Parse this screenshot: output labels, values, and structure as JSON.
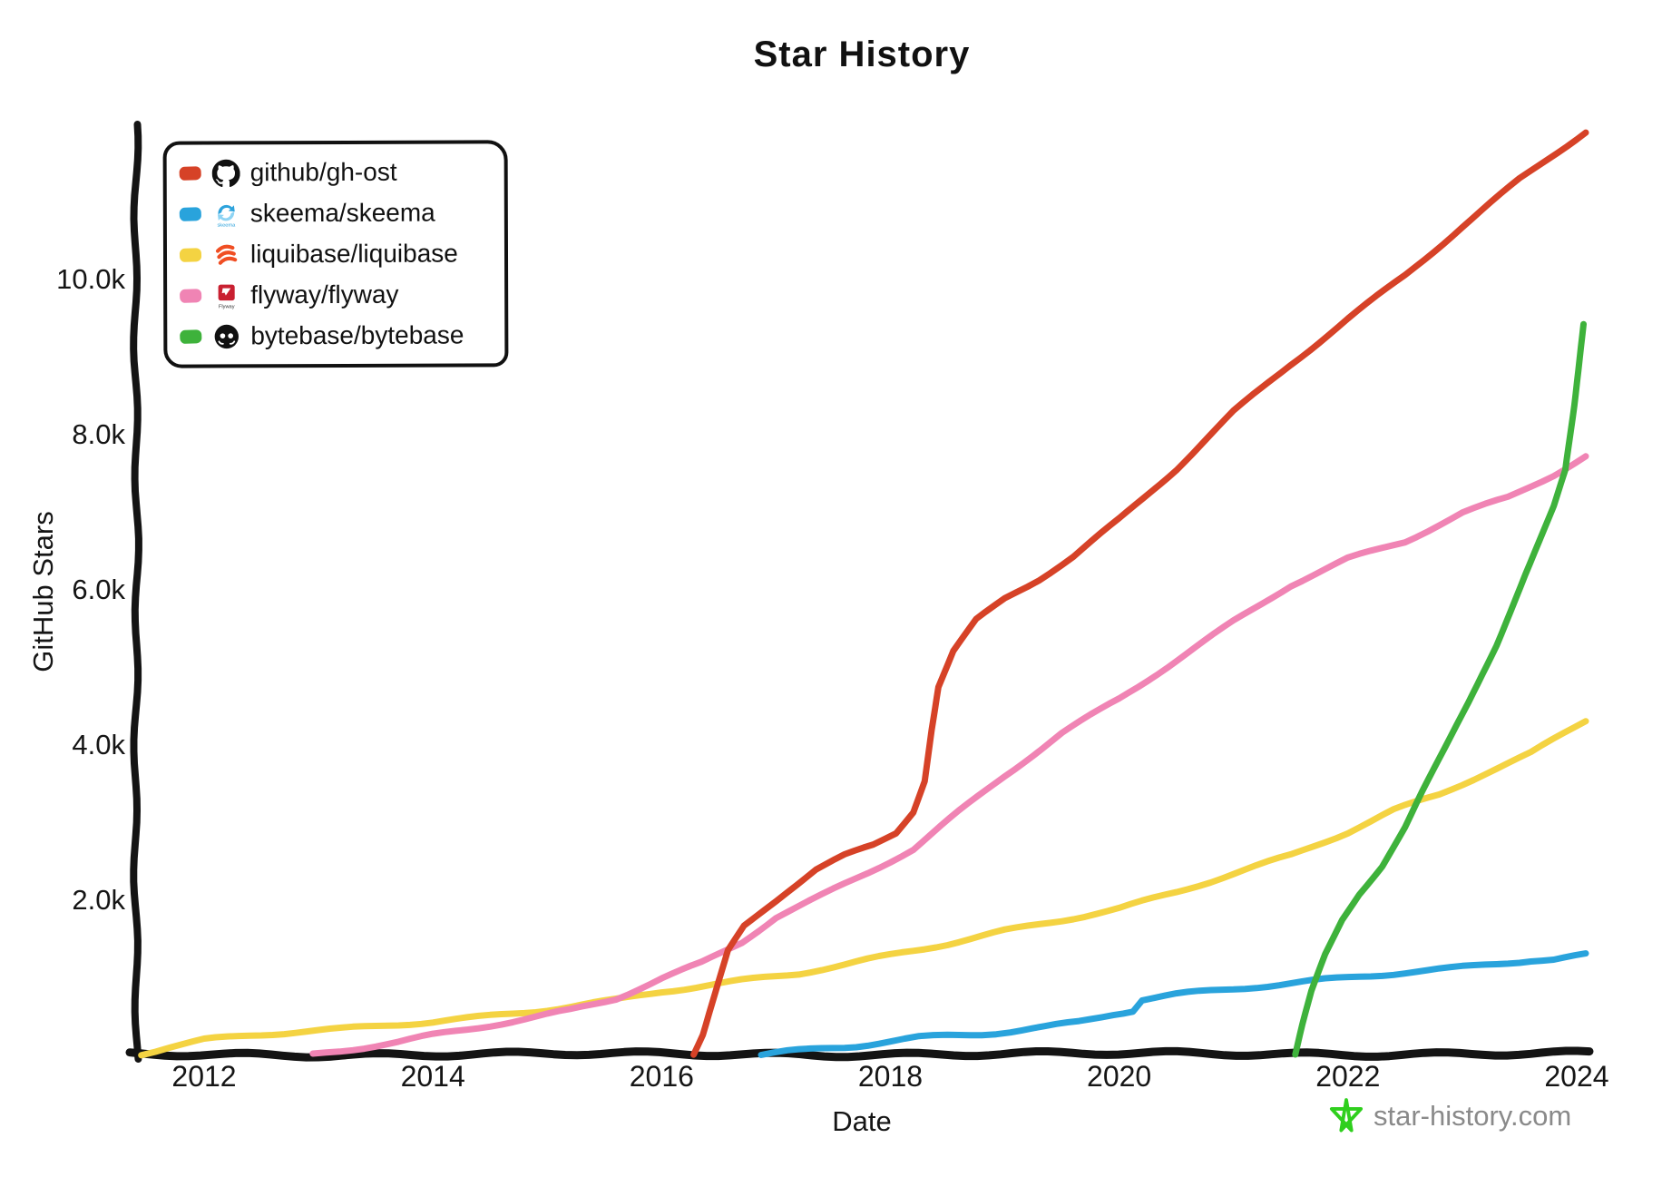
{
  "title": "Star History",
  "axes": {
    "x_label": "Date",
    "y_label": "GitHub Stars",
    "x_tick_labels": [
      "2012",
      "2014",
      "2016",
      "2018",
      "2020",
      "2022",
      "2024"
    ],
    "y_tick_labels": [
      "2.0k",
      "4.0k",
      "6.0k",
      "8.0k",
      "10.0k"
    ]
  },
  "footer": {
    "site_label": "star-history.com"
  },
  "chart_data": {
    "type": "line",
    "title": "Star History",
    "xlabel": "Date",
    "ylabel": "GitHub Stars",
    "x_range": [
      2011.4,
      2024.2
    ],
    "y_range": [
      0,
      12000
    ],
    "x_ticks": [
      2012,
      2014,
      2016,
      2018,
      2020,
      2022,
      2024
    ],
    "y_ticks": [
      2000,
      4000,
      6000,
      8000,
      10000
    ],
    "grid": false,
    "legend_position": "top-left",
    "style": "xkcd-hand-drawn",
    "series": [
      {
        "name": "github/gh-ost",
        "color": "#d64227",
        "points": [
          [
            2016.28,
            0
          ],
          [
            2016.36,
            250
          ],
          [
            2016.47,
            800
          ],
          [
            2016.58,
            1350
          ],
          [
            2016.72,
            1680
          ],
          [
            2016.9,
            1900
          ],
          [
            2017.1,
            2130
          ],
          [
            2017.35,
            2400
          ],
          [
            2017.6,
            2580
          ],
          [
            2017.85,
            2720
          ],
          [
            2018.05,
            2880
          ],
          [
            2018.2,
            3150
          ],
          [
            2018.3,
            3550
          ],
          [
            2018.36,
            4200
          ],
          [
            2018.42,
            4750
          ],
          [
            2018.55,
            5200
          ],
          [
            2018.75,
            5600
          ],
          [
            2019.0,
            5880
          ],
          [
            2019.3,
            6130
          ],
          [
            2019.6,
            6420
          ],
          [
            2020.0,
            6900
          ],
          [
            2020.5,
            7560
          ],
          [
            2021.0,
            8300
          ],
          [
            2021.5,
            8920
          ],
          [
            2022.0,
            9500
          ],
          [
            2022.5,
            10060
          ],
          [
            2023.0,
            10680
          ],
          [
            2023.5,
            11280
          ],
          [
            2024.08,
            11900
          ]
        ]
      },
      {
        "name": "skeema/skeema",
        "color": "#29a3dc",
        "points": [
          [
            2016.87,
            0
          ],
          [
            2017.1,
            45
          ],
          [
            2017.4,
            90
          ],
          [
            2017.7,
            130
          ],
          [
            2018.0,
            190
          ],
          [
            2018.25,
            240
          ],
          [
            2018.5,
            265
          ],
          [
            2018.8,
            285
          ],
          [
            2019.05,
            315
          ],
          [
            2019.35,
            365
          ],
          [
            2019.65,
            430
          ],
          [
            2019.95,
            530
          ],
          [
            2020.12,
            575
          ],
          [
            2020.2,
            715
          ],
          [
            2020.5,
            775
          ],
          [
            2020.8,
            820
          ],
          [
            2021.1,
            865
          ],
          [
            2021.5,
            925
          ],
          [
            2021.8,
            975
          ],
          [
            2022.1,
            1020
          ],
          [
            2022.5,
            1080
          ],
          [
            2022.9,
            1130
          ],
          [
            2023.3,
            1190
          ],
          [
            2023.6,
            1235
          ],
          [
            2023.8,
            1240
          ],
          [
            2024.08,
            1295
          ]
        ]
      },
      {
        "name": "liquibase/liquibase",
        "color": "#f4d342",
        "points": [
          [
            2011.45,
            25
          ],
          [
            2011.7,
            110
          ],
          [
            2012.0,
            195
          ],
          [
            2012.4,
            250
          ],
          [
            2012.8,
            295
          ],
          [
            2013.2,
            330
          ],
          [
            2013.6,
            385
          ],
          [
            2014.0,
            435
          ],
          [
            2014.4,
            495
          ],
          [
            2014.8,
            565
          ],
          [
            2015.2,
            640
          ],
          [
            2015.6,
            720
          ],
          [
            2016.0,
            830
          ],
          [
            2016.4,
            900
          ],
          [
            2016.8,
            975
          ],
          [
            2017.2,
            1050
          ],
          [
            2017.6,
            1160
          ],
          [
            2018.0,
            1285
          ],
          [
            2018.5,
            1440
          ],
          [
            2019.0,
            1610
          ],
          [
            2019.5,
            1755
          ],
          [
            2020.0,
            1900
          ],
          [
            2020.5,
            2110
          ],
          [
            2021.0,
            2340
          ],
          [
            2021.5,
            2570
          ],
          [
            2022.0,
            2870
          ],
          [
            2022.4,
            3150
          ],
          [
            2022.8,
            3360
          ],
          [
            2023.2,
            3640
          ],
          [
            2023.6,
            3900
          ],
          [
            2024.08,
            4330
          ]
        ]
      },
      {
        "name": "flyway/flyway",
        "color": "#f084b4",
        "points": [
          [
            2012.95,
            10
          ],
          [
            2013.3,
            80
          ],
          [
            2013.7,
            165
          ],
          [
            2014.0,
            250
          ],
          [
            2014.4,
            355
          ],
          [
            2014.8,
            460
          ],
          [
            2015.2,
            580
          ],
          [
            2015.6,
            740
          ],
          [
            2016.0,
            1000
          ],
          [
            2016.35,
            1200
          ],
          [
            2016.7,
            1470
          ],
          [
            2017.0,
            1790
          ],
          [
            2017.4,
            2060
          ],
          [
            2017.8,
            2350
          ],
          [
            2018.2,
            2650
          ],
          [
            2018.6,
            3130
          ],
          [
            2019.0,
            3600
          ],
          [
            2019.5,
            4150
          ],
          [
            2020.0,
            4600
          ],
          [
            2020.5,
            5100
          ],
          [
            2021.0,
            5600
          ],
          [
            2021.5,
            6070
          ],
          [
            2022.0,
            6400
          ],
          [
            2022.5,
            6620
          ],
          [
            2023.0,
            6980
          ],
          [
            2023.4,
            7180
          ],
          [
            2023.8,
            7480
          ],
          [
            2024.08,
            7720
          ]
        ]
      },
      {
        "name": "bytebase/bytebase",
        "color": "#3eb23b",
        "points": [
          [
            2021.54,
            0
          ],
          [
            2021.6,
            380
          ],
          [
            2021.68,
            820
          ],
          [
            2021.8,
            1300
          ],
          [
            2021.95,
            1760
          ],
          [
            2022.1,
            2100
          ],
          [
            2022.3,
            2460
          ],
          [
            2022.5,
            2950
          ],
          [
            2022.65,
            3400
          ],
          [
            2022.85,
            3960
          ],
          [
            2023.05,
            4540
          ],
          [
            2023.3,
            5300
          ],
          [
            2023.55,
            6200
          ],
          [
            2023.8,
            7060
          ],
          [
            2023.9,
            7520
          ],
          [
            2023.98,
            8350
          ],
          [
            2024.06,
            9400
          ]
        ]
      }
    ]
  }
}
